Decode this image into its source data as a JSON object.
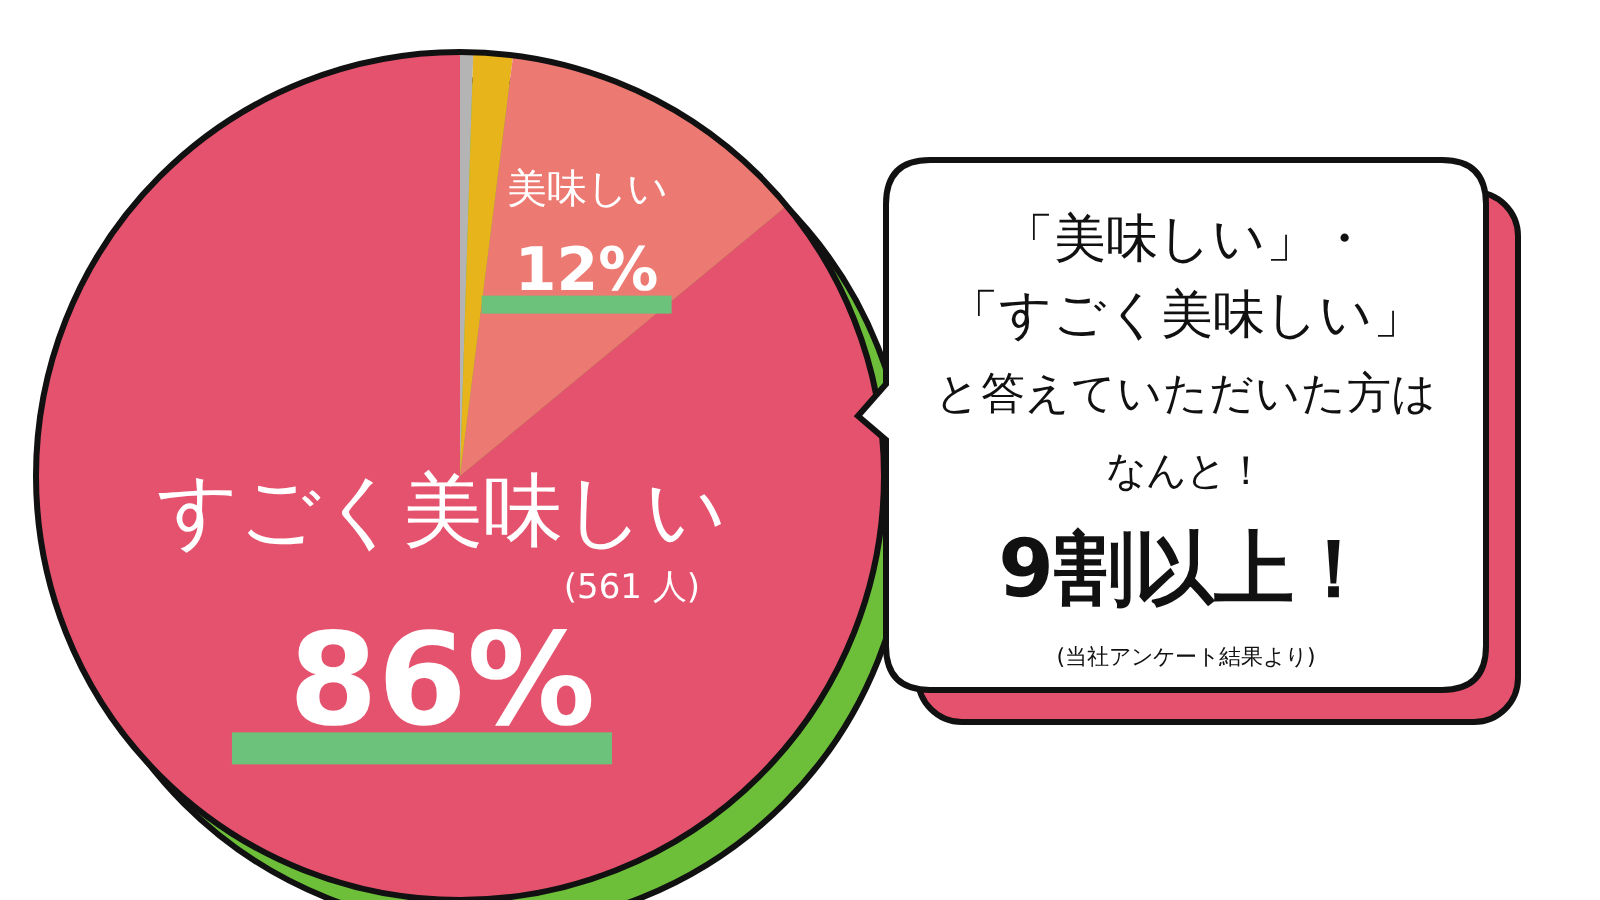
{
  "chart_data": {
    "type": "pie",
    "categories": [
      null,
      null,
      "美味しい",
      "すごく美味しい"
    ],
    "values": [
      0.5,
      1.5,
      12,
      86
    ],
    "colors": [
      "#b4b4b4",
      "#e8b41c",
      "#ec7a72",
      "#e5526e"
    ],
    "value_labels": [
      null,
      null,
      "12%",
      "86%"
    ],
    "annotations": [
      "(561 人)",
      "「美味しい」・",
      "「すごく美味しい」",
      "と答えていただいた方は",
      "なんと！",
      "9割以上！",
      "(当社アンケート結果より)"
    ]
  }
}
